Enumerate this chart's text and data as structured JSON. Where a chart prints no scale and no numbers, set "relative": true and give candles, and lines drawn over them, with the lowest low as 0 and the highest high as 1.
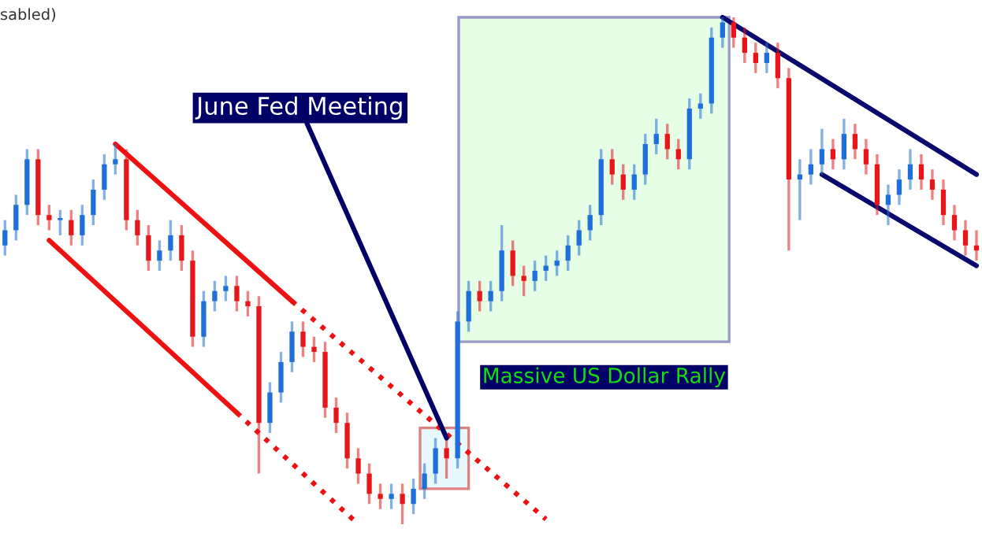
{
  "chart_data": {
    "type": "candlestick",
    "relative": true,
    "categories": [
      null,
      null,
      null,
      null,
      null,
      null,
      null,
      null,
      null,
      null,
      null,
      null,
      null,
      null,
      null,
      null,
      null,
      null,
      null,
      null,
      null,
      null,
      null,
      null,
      null,
      null,
      null,
      null,
      null,
      null,
      null,
      null,
      null,
      null,
      null,
      null,
      null,
      null,
      null,
      null,
      null,
      null,
      null,
      null,
      null,
      null,
      null,
      null,
      null,
      null,
      null,
      null,
      null,
      null,
      null,
      null,
      null,
      null,
      null,
      null,
      null,
      null,
      null,
      null,
      null,
      null,
      null,
      null,
      null,
      null,
      null,
      null,
      null,
      null,
      null,
      null,
      null,
      null,
      null,
      null,
      null,
      null,
      null,
      null,
      null,
      null,
      null,
      null,
      null
    ],
    "ohlc": [
      [
        0.55,
        0.6,
        0.53,
        0.58
      ],
      [
        0.58,
        0.65,
        0.56,
        0.63
      ],
      [
        0.63,
        0.74,
        0.61,
        0.72
      ],
      [
        0.72,
        0.74,
        0.59,
        0.61
      ],
      [
        0.61,
        0.63,
        0.58,
        0.6
      ],
      [
        0.6,
        0.62,
        0.57,
        0.6
      ],
      [
        0.6,
        0.62,
        0.55,
        0.57
      ],
      [
        0.57,
        0.63,
        0.55,
        0.61
      ],
      [
        0.61,
        0.68,
        0.59,
        0.66
      ],
      [
        0.66,
        0.73,
        0.64,
        0.71
      ],
      [
        0.71,
        0.75,
        0.69,
        0.72
      ],
      [
        0.72,
        0.74,
        0.58,
        0.6
      ],
      [
        0.6,
        0.62,
        0.55,
        0.57
      ],
      [
        0.57,
        0.59,
        0.5,
        0.52
      ],
      [
        0.52,
        0.56,
        0.5,
        0.54
      ],
      [
        0.54,
        0.6,
        0.52,
        0.57
      ],
      [
        0.57,
        0.59,
        0.5,
        0.52
      ],
      [
        0.52,
        0.54,
        0.35,
        0.37
      ],
      [
        0.37,
        0.46,
        0.35,
        0.44
      ],
      [
        0.44,
        0.48,
        0.42,
        0.46
      ],
      [
        0.46,
        0.49,
        0.44,
        0.47
      ],
      [
        0.47,
        0.49,
        0.42,
        0.44
      ],
      [
        0.44,
        0.46,
        0.41,
        0.43
      ],
      [
        0.43,
        0.45,
        0.1,
        0.2
      ],
      [
        0.2,
        0.28,
        0.18,
        0.26
      ],
      [
        0.26,
        0.34,
        0.24,
        0.32
      ],
      [
        0.32,
        0.4,
        0.3,
        0.38
      ],
      [
        0.38,
        0.4,
        0.33,
        0.35
      ],
      [
        0.35,
        0.37,
        0.32,
        0.34
      ],
      [
        0.34,
        0.36,
        0.21,
        0.23
      ],
      [
        0.23,
        0.25,
        0.18,
        0.2
      ],
      [
        0.2,
        0.22,
        0.11,
        0.13
      ],
      [
        0.13,
        0.15,
        0.08,
        0.1
      ],
      [
        0.1,
        0.12,
        0.04,
        0.06
      ],
      [
        0.06,
        0.08,
        0.03,
        0.05
      ],
      [
        0.05,
        0.08,
        0.03,
        0.06
      ],
      [
        0.06,
        0.08,
        0.0,
        0.04
      ],
      [
        0.04,
        0.09,
        0.02,
        0.07
      ],
      [
        0.07,
        0.12,
        0.05,
        0.1
      ],
      [
        0.1,
        0.17,
        0.08,
        0.15
      ],
      [
        0.15,
        0.17,
        0.09,
        0.13
      ],
      [
        0.13,
        0.42,
        0.11,
        0.4
      ],
      [
        0.4,
        0.48,
        0.38,
        0.46
      ],
      [
        0.46,
        0.48,
        0.42,
        0.44
      ],
      [
        0.44,
        0.48,
        0.42,
        0.46
      ],
      [
        0.46,
        0.59,
        0.44,
        0.54
      ],
      [
        0.54,
        0.56,
        0.47,
        0.49
      ],
      [
        0.49,
        0.51,
        0.45,
        0.48
      ],
      [
        0.48,
        0.52,
        0.46,
        0.5
      ],
      [
        0.5,
        0.53,
        0.48,
        0.51
      ],
      [
        0.51,
        0.54,
        0.49,
        0.52
      ],
      [
        0.52,
        0.57,
        0.5,
        0.55
      ],
      [
        0.55,
        0.6,
        0.53,
        0.58
      ],
      [
        0.58,
        0.63,
        0.56,
        0.61
      ],
      [
        0.61,
        0.74,
        0.59,
        0.72
      ],
      [
        0.72,
        0.74,
        0.67,
        0.69
      ],
      [
        0.69,
        0.71,
        0.64,
        0.66
      ],
      [
        0.66,
        0.71,
        0.64,
        0.69
      ],
      [
        0.69,
        0.77,
        0.67,
        0.75
      ],
      [
        0.75,
        0.8,
        0.73,
        0.77
      ],
      [
        0.77,
        0.79,
        0.72,
        0.74
      ],
      [
        0.74,
        0.76,
        0.7,
        0.72
      ],
      [
        0.72,
        0.84,
        0.7,
        0.82
      ],
      [
        0.82,
        0.85,
        0.8,
        0.83
      ],
      [
        0.83,
        0.98,
        0.81,
        0.96
      ],
      [
        0.96,
        1.0,
        0.94,
        0.99
      ],
      [
        0.99,
        1.0,
        0.94,
        0.96
      ],
      [
        0.96,
        0.98,
        0.91,
        0.93
      ],
      [
        0.93,
        0.95,
        0.89,
        0.91
      ],
      [
        0.91,
        0.95,
        0.89,
        0.93
      ],
      [
        0.93,
        0.95,
        0.86,
        0.88
      ],
      [
        0.88,
        0.9,
        0.54,
        0.68
      ],
      [
        0.68,
        0.72,
        0.6,
        0.69
      ],
      [
        0.69,
        0.74,
        0.67,
        0.71
      ],
      [
        0.71,
        0.78,
        0.69,
        0.74
      ],
      [
        0.74,
        0.76,
        0.7,
        0.72
      ],
      [
        0.72,
        0.8,
        0.7,
        0.77
      ],
      [
        0.77,
        0.79,
        0.72,
        0.74
      ],
      [
        0.74,
        0.76,
        0.69,
        0.71
      ],
      [
        0.71,
        0.73,
        0.61,
        0.63
      ],
      [
        0.63,
        0.67,
        0.59,
        0.65
      ],
      [
        0.65,
        0.7,
        0.63,
        0.68
      ],
      [
        0.68,
        0.74,
        0.66,
        0.71
      ],
      [
        0.71,
        0.73,
        0.66,
        0.68
      ],
      [
        0.68,
        0.7,
        0.64,
        0.66
      ],
      [
        0.66,
        0.68,
        0.59,
        0.61
      ],
      [
        0.61,
        0.63,
        0.56,
        0.58
      ],
      [
        0.58,
        0.6,
        0.53,
        0.55
      ],
      [
        0.55,
        0.58,
        0.52,
        0.54
      ]
    ],
    "colors": [
      "#1e6fd9",
      "#1e6fd9",
      "#1e6fd9",
      "#e8161b",
      "#e8161b",
      "#1e6fd9",
      "#e8161b",
      "#1e6fd9",
      "#1e6fd9",
      "#1e6fd9",
      "#1e6fd9",
      "#e8161b",
      "#e8161b",
      "#e8161b",
      "#1e6fd9",
      "#1e6fd9",
      "#e8161b",
      "#e8161b",
      "#1e6fd9",
      "#1e6fd9",
      "#1e6fd9",
      "#e8161b",
      "#e8161b",
      "#e8161b",
      "#1e6fd9",
      "#1e6fd9",
      "#1e6fd9",
      "#e8161b",
      "#e8161b",
      "#e8161b",
      "#e8161b",
      "#e8161b",
      "#e8161b",
      "#e8161b",
      "#e8161b",
      "#1e6fd9",
      "#e8161b",
      "#1e6fd9",
      "#1e6fd9",
      "#1e6fd9",
      "#e8161b",
      "#1e6fd9",
      "#1e6fd9",
      "#e8161b",
      "#1e6fd9",
      "#1e6fd9",
      "#e8161b",
      "#e8161b",
      "#1e6fd9",
      "#1e6fd9",
      "#1e6fd9",
      "#1e6fd9",
      "#1e6fd9",
      "#1e6fd9",
      "#1e6fd9",
      "#e8161b",
      "#e8161b",
      "#1e6fd9",
      "#1e6fd9",
      "#1e6fd9",
      "#e8161b",
      "#e8161b",
      "#1e6fd9",
      "#1e6fd9",
      "#1e6fd9",
      "#1e6fd9",
      "#e8161b",
      "#e8161b",
      "#e8161b",
      "#1e6fd9",
      "#e8161b",
      "#e8161b",
      "#1e6fd9",
      "#1e6fd9",
      "#1e6fd9",
      "#e8161b",
      "#1e6fd9",
      "#e8161b",
      "#e8161b",
      "#e8161b",
      "#1e6fd9",
      "#1e6fd9",
      "#1e6fd9",
      "#e8161b",
      "#e8161b",
      "#e8161b",
      "#e8161b",
      "#e8161b",
      "#e8161b"
    ],
    "series": [
      {
        "type": "line",
        "color": "#ee1111",
        "line_style": "solid",
        "values": [
          null,
          null,
          null,
          null,
          null,
          null,
          null,
          null,
          null,
          null,
          0.75,
          null,
          null,
          null,
          null,
          null,
          null,
          null,
          null,
          null,
          null,
          null,
          null,
          null,
          null,
          null,
          0.44,
          null,
          null,
          null,
          null,
          null,
          null,
          null,
          null,
          null,
          null,
          null,
          null,
          null,
          null,
          null,
          null,
          null,
          null,
          null,
          null,
          null,
          null,
          null,
          null,
          null,
          null,
          null,
          null,
          null,
          null,
          null,
          null,
          null,
          null,
          null,
          null,
          null,
          null,
          null,
          null,
          null,
          null,
          null,
          null,
          null,
          null,
          null,
          null,
          null,
          null,
          null,
          null,
          null,
          null,
          null,
          null,
          null,
          null,
          null,
          null,
          null,
          null
        ]
      },
      {
        "type": "line",
        "color": "#ee1111",
        "line_style": "dotted",
        "values": [
          null,
          null,
          null,
          null,
          null,
          null,
          null,
          null,
          null,
          null,
          null,
          null,
          null,
          null,
          null,
          null,
          null,
          null,
          null,
          null,
          null,
          null,
          null,
          null,
          null,
          null,
          0.44,
          null,
          null,
          null,
          null,
          null,
          null,
          null,
          null,
          null,
          null,
          null,
          null,
          null,
          null,
          null,
          null,
          null,
          null,
          null,
          null,
          null,
          null,
          0.01,
          null,
          null,
          null,
          null,
          null,
          null,
          null,
          null,
          null,
          null,
          null,
          null,
          null,
          null,
          null,
          null,
          null,
          null,
          null,
          null,
          null,
          null,
          null,
          null,
          null,
          null,
          null,
          null,
          null,
          null,
          null,
          null,
          null,
          null,
          null,
          null,
          null,
          null,
          null
        ]
      },
      {
        "type": "line",
        "color": "#ee1111",
        "line_style": "solid",
        "values": [
          null,
          null,
          null,
          null,
          0.56,
          null,
          null,
          null,
          null,
          null,
          null,
          null,
          null,
          null,
          null,
          null,
          null,
          null,
          null,
          null,
          null,
          0.22,
          null,
          null,
          null,
          null,
          null,
          null,
          null,
          null,
          null,
          null,
          null,
          null,
          null,
          null,
          null,
          null,
          null,
          null,
          null,
          null,
          null,
          null,
          null,
          null,
          null,
          null,
          null,
          null,
          null,
          null,
          null,
          null,
          null,
          null,
          null,
          null,
          null,
          null,
          null,
          null,
          null,
          null,
          null,
          null,
          null,
          null,
          null,
          null,
          null,
          null,
          null,
          null,
          null,
          null,
          null,
          null,
          null,
          null,
          null,
          null,
          null,
          null,
          null,
          null,
          null,
          null,
          null
        ]
      },
      {
        "type": "line",
        "color": "#ee1111",
        "line_style": "dotted",
        "values": [
          null,
          null,
          null,
          null,
          null,
          null,
          null,
          null,
          null,
          null,
          null,
          null,
          null,
          null,
          null,
          null,
          null,
          null,
          null,
          null,
          null,
          0.22,
          null,
          null,
          null,
          null,
          null,
          null,
          null,
          null,
          null,
          null,
          0.0,
          null,
          null,
          null,
          null,
          null,
          null,
          null,
          null,
          null,
          null,
          null,
          null,
          null,
          null,
          null,
          null,
          null,
          null,
          null,
          null,
          null,
          null,
          null,
          null,
          null,
          null,
          null,
          null,
          null,
          null,
          null,
          null,
          null,
          null,
          null,
          null,
          null,
          null,
          null,
          null,
          null,
          null,
          null,
          null,
          null,
          null,
          null,
          null,
          null,
          null,
          null,
          null,
          null,
          null,
          null,
          null
        ]
      },
      {
        "type": "line",
        "color": "#0a0a6e",
        "line_style": "solid",
        "values": [
          null,
          null,
          null,
          null,
          null,
          null,
          null,
          null,
          null,
          null,
          null,
          null,
          null,
          null,
          null,
          null,
          null,
          null,
          null,
          null,
          null,
          null,
          null,
          null,
          null,
          null,
          null,
          null,
          null,
          null,
          null,
          null,
          null,
          null,
          null,
          null,
          null,
          null,
          null,
          null,
          null,
          null,
          null,
          null,
          null,
          null,
          null,
          null,
          null,
          null,
          null,
          null,
          null,
          null,
          null,
          null,
          null,
          null,
          null,
          null,
          null,
          null,
          null,
          null,
          null,
          1.0,
          null,
          null,
          null,
          null,
          null,
          null,
          null,
          null,
          null,
          null,
          null,
          null,
          null,
          null,
          null,
          null,
          null,
          null,
          null,
          null,
          null,
          null,
          0.69
        ]
      },
      {
        "type": "line",
        "color": "#0a0a6e",
        "line_style": "solid",
        "values": [
          null,
          null,
          null,
          null,
          null,
          null,
          null,
          null,
          null,
          null,
          null,
          null,
          null,
          null,
          null,
          null,
          null,
          null,
          null,
          null,
          null,
          null,
          null,
          null,
          null,
          null,
          null,
          null,
          null,
          null,
          null,
          null,
          null,
          null,
          null,
          null,
          null,
          null,
          null,
          null,
          null,
          null,
          null,
          null,
          null,
          null,
          null,
          null,
          null,
          null,
          null,
          null,
          null,
          null,
          null,
          null,
          null,
          null,
          null,
          null,
          null,
          null,
          null,
          null,
          null,
          null,
          null,
          null,
          null,
          null,
          null,
          null,
          null,
          null,
          0.69,
          null,
          null,
          null,
          null,
          null,
          null,
          null,
          null,
          null,
          null,
          null,
          null,
          null,
          0.51
        ]
      }
    ],
    "annotations": [
      "sabled)",
      "June Fed Meeting",
      "Massive US Dollar Rally"
    ],
    "grid": false
  }
}
